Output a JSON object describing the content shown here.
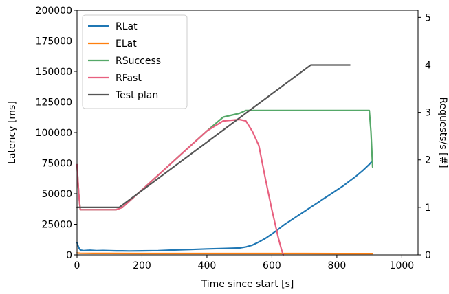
{
  "chart_data": {
    "type": "line",
    "xlabel": "Time since start [s]",
    "ylabel_left": "Latency [ms]",
    "ylabel_right": "Requests/s [#]",
    "xlim": [
      0,
      1050
    ],
    "ylim_left": [
      0,
      200000
    ],
    "ylim_right": [
      0,
      5.15
    ],
    "x_ticks": [
      0,
      200,
      400,
      600,
      800,
      1000
    ],
    "y_left_ticks": [
      0,
      25000,
      50000,
      75000,
      100000,
      125000,
      150000,
      175000,
      200000
    ],
    "y_right_ticks": [
      0,
      1,
      2,
      3,
      4,
      5
    ],
    "grid": false,
    "legend_position": "top-left",
    "series": [
      {
        "name": "RLat",
        "axis": "left",
        "color": "#1f77b4",
        "x": [
          0,
          5,
          10,
          20,
          40,
          60,
          80,
          100,
          120,
          140,
          160,
          200,
          250,
          300,
          350,
          400,
          450,
          500,
          520,
          540,
          560,
          580,
          600,
          620,
          640,
          660,
          680,
          700,
          720,
          740,
          760,
          780,
          800,
          820,
          840,
          860,
          880,
          900,
          910
        ],
        "y": [
          10000,
          6000,
          4000,
          3500,
          3800,
          3500,
          3600,
          3400,
          3300,
          3300,
          3200,
          3300,
          3500,
          4000,
          4400,
          4900,
          5200,
          5600,
          6500,
          8000,
          10500,
          13500,
          17000,
          21000,
          25000,
          28500,
          32000,
          35500,
          39000,
          42500,
          46000,
          49500,
          53000,
          56500,
          60500,
          64500,
          69000,
          74000,
          77000
        ]
      },
      {
        "name": "ELat",
        "axis": "left",
        "color": "#ff7f0e",
        "x": [
          0,
          10,
          50,
          100,
          200,
          300,
          400,
          500,
          600,
          700,
          800,
          900,
          910
        ],
        "y": [
          1500,
          1300,
          1200,
          1200,
          1150,
          1150,
          1150,
          1100,
          1100,
          1100,
          1050,
          1050,
          1050
        ]
      },
      {
        "name": "RSuccess",
        "axis": "right",
        "color": "#55a868",
        "x": [
          0,
          5,
          10,
          20,
          40,
          60,
          80,
          100,
          120,
          140,
          200,
          250,
          300,
          350,
          400,
          450,
          500,
          520,
          540,
          560,
          600,
          650,
          700,
          750,
          800,
          850,
          900,
          905,
          910
        ],
        "y": [
          1.9,
          1.3,
          0.95,
          0.95,
          0.95,
          0.95,
          0.95,
          0.95,
          0.95,
          1.0,
          1.37,
          1.68,
          1.99,
          2.3,
          2.61,
          2.9,
          2.98,
          3.04,
          3.04,
          3.04,
          3.04,
          3.04,
          3.04,
          3.04,
          3.04,
          3.04,
          3.04,
          2.6,
          1.85
        ]
      },
      {
        "name": "RFast",
        "axis": "right",
        "color": "#e8607f",
        "x": [
          0,
          5,
          10,
          20,
          40,
          60,
          80,
          100,
          120,
          140,
          200,
          250,
          300,
          350,
          400,
          450,
          500,
          520,
          540,
          560,
          580,
          600,
          620,
          630,
          635
        ],
        "y": [
          1.9,
          1.3,
          0.95,
          0.95,
          0.95,
          0.95,
          0.95,
          0.95,
          0.95,
          1.0,
          1.37,
          1.68,
          1.99,
          2.3,
          2.61,
          2.82,
          2.85,
          2.82,
          2.6,
          2.3,
          1.6,
          0.95,
          0.35,
          0.1,
          0.0
        ]
      },
      {
        "name": "Test plan",
        "axis": "right",
        "color": "#555555",
        "x": [
          0,
          130,
          720,
          840
        ],
        "y": [
          1.0,
          1.0,
          4.0,
          4.0
        ]
      }
    ]
  }
}
